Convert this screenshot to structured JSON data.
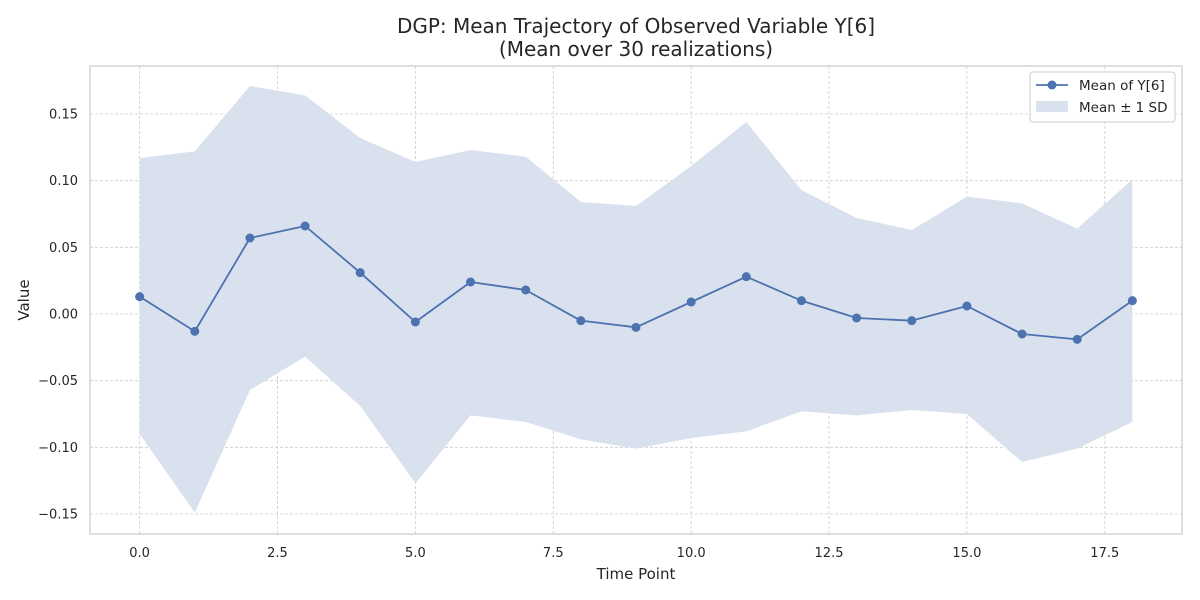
{
  "chart_data": {
    "type": "line",
    "title": "DGP: Mean Trajectory of Observed Variable Y[6]",
    "subtitle": "(Mean over 30 realizations)",
    "xlabel": "Time Point",
    "ylabel": "Value",
    "xlim": [
      -0.9,
      18.9
    ],
    "ylim": [
      -0.165,
      0.186
    ],
    "xticks": [
      0.0,
      2.5,
      5.0,
      7.5,
      10.0,
      12.5,
      15.0,
      17.5
    ],
    "xtick_labels": [
      "0.0",
      "2.5",
      "5.0",
      "7.5",
      "10.0",
      "12.5",
      "15.0",
      "17.5"
    ],
    "yticks": [
      -0.15,
      -0.1,
      -0.05,
      0.0,
      0.05,
      0.1,
      0.15
    ],
    "ytick_labels": [
      "−0.15",
      "−0.10",
      "−0.05",
      "0.00",
      "0.05",
      "0.10",
      "0.15"
    ],
    "grid": true,
    "legend_position": "top-right",
    "x": [
      0,
      1,
      2,
      3,
      4,
      5,
      6,
      7,
      8,
      9,
      10,
      11,
      12,
      13,
      14,
      15,
      16,
      17,
      18
    ],
    "series": [
      {
        "name": "Mean of Y[6]",
        "color": "#4c72b0",
        "values": [
          0.013,
          -0.013,
          0.057,
          0.066,
          0.031,
          -0.006,
          0.024,
          0.018,
          -0.005,
          -0.01,
          0.009,
          0.028,
          0.01,
          -0.003,
          -0.005,
          0.006,
          -0.015,
          -0.019,
          0.01
        ]
      },
      {
        "name": "Mean ± 1 SD",
        "color": "#dae1ee",
        "upper": [
          0.117,
          0.122,
          0.171,
          0.164,
          0.132,
          0.114,
          0.123,
          0.118,
          0.084,
          0.081,
          0.111,
          0.144,
          0.093,
          0.072,
          0.063,
          0.088,
          0.083,
          0.064,
          0.101
        ],
        "lower": [
          -0.09,
          -0.149,
          -0.057,
          -0.032,
          -0.069,
          -0.127,
          -0.076,
          -0.081,
          -0.094,
          -0.101,
          -0.093,
          -0.088,
          -0.073,
          -0.076,
          -0.072,
          -0.075,
          -0.111,
          -0.101,
          -0.081
        ]
      }
    ]
  }
}
